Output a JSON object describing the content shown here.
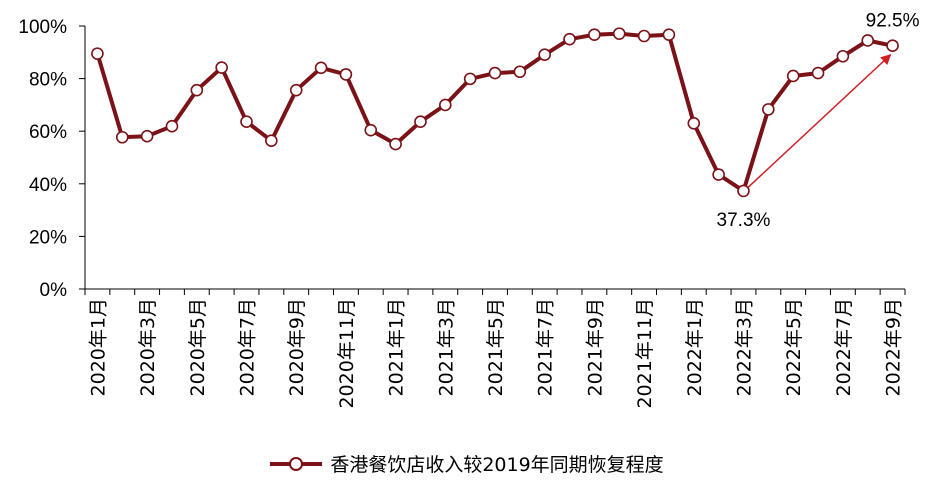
{
  "chart_data": {
    "type": "line",
    "title": "",
    "xlabel": "",
    "ylabel": "",
    "ylim": [
      0,
      100
    ],
    "yticks": [
      "0%",
      "20%",
      "40%",
      "60%",
      "80%",
      "100%"
    ],
    "x_tick_labels": [
      "2020年1月",
      "2020年3月",
      "2020年5月",
      "2020年7月",
      "2020年9月",
      "2020年11月",
      "2021年1月",
      "2021年3月",
      "2021年5月",
      "2021年7月",
      "2021年9月",
      "2021年11月",
      "2022年1月",
      "2022年3月",
      "2022年5月",
      "2022年7月",
      "2022年9月"
    ],
    "categories": [
      "2020年1月",
      "2020年2月",
      "2020年3月",
      "2020年4月",
      "2020年5月",
      "2020年6月",
      "2020年7月",
      "2020年8月",
      "2020年9月",
      "2020年10月",
      "2020年11月",
      "2020年12月",
      "2021年1月",
      "2021年2月",
      "2021年3月",
      "2021年4月",
      "2021年5月",
      "2021年6月",
      "2021年7月",
      "2021年8月",
      "2021年9月",
      "2021年10月",
      "2021年11月",
      "2021年12月",
      "2022年1月",
      "2022年2月",
      "2022年3月",
      "2022年4月",
      "2022年5月",
      "2022年6月",
      "2022年7月",
      "2022年8月",
      "2022年9月"
    ],
    "series": [
      {
        "name": "香港餐饮店收入较2019年同期恢复程度",
        "color": "#7a1218",
        "values": [
          89.5,
          57.7,
          58.1,
          61.9,
          75.6,
          84.2,
          63.6,
          56.4,
          75.6,
          84.1,
          81.6,
          60.4,
          55.1,
          63.6,
          70.0,
          79.9,
          82.1,
          82.6,
          89.1,
          95.0,
          96.7,
          97.1,
          96.2,
          96.7,
          63.0,
          43.5,
          37.3,
          68.3,
          81.0,
          82.1,
          88.5,
          94.5,
          92.5
        ]
      }
    ],
    "annotations": [
      {
        "text": "92.5%",
        "category": "2022年9月",
        "value": 92.5
      },
      {
        "text": "37.3%",
        "category": "2022年3月",
        "value": 37.3
      }
    ],
    "arrow": {
      "from_category": "2022年3月",
      "from_value": 37.3,
      "to_category": "2022年9月",
      "to_value": 92.5,
      "color": "#d11f25"
    },
    "grid": false,
    "legend_position": "bottom"
  }
}
